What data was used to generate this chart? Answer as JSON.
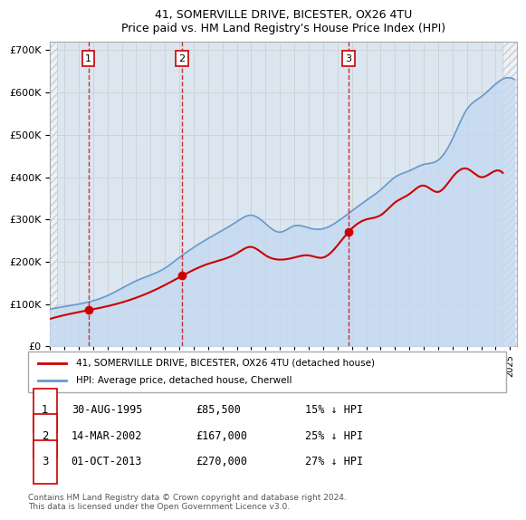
{
  "title": "41, SOMERVILLE DRIVE, BICESTER, OX26 4TU",
  "subtitle": "Price paid vs. HM Land Registry's House Price Index (HPI)",
  "ylabel": "",
  "ylim": [
    0,
    720000
  ],
  "yticks": [
    0,
    100000,
    200000,
    300000,
    400000,
    500000,
    600000,
    700000
  ],
  "ytick_labels": [
    "£0",
    "£100K",
    "£200K",
    "£300K",
    "£400K",
    "£500K",
    "£600K",
    "£700K"
  ],
  "sale_dates": [
    "1995-08-30",
    "2002-03-14",
    "2013-10-01"
  ],
  "sale_prices": [
    85500,
    167000,
    270000
  ],
  "sale_labels": [
    "1",
    "2",
    "3"
  ],
  "sale_color": "#cc0000",
  "hpi_color": "#6699cc",
  "hpi_fill_color": "#c5d9f0",
  "grid_color": "#cccccc",
  "bg_color": "#dce6f0",
  "plot_bg": "#dce6f0",
  "hatch_color": "#c0c8d8",
  "vline_color": "#cc0000",
  "vline_style": "--",
  "legend_sale": "41, SOMERVILLE DRIVE, BICESTER, OX26 4TU (detached house)",
  "legend_hpi": "HPI: Average price, detached house, Cherwell",
  "table_data": [
    [
      "1",
      "30-AUG-1995",
      "£85,500",
      "15% ↓ HPI"
    ],
    [
      "2",
      "14-MAR-2002",
      "£167,000",
      "25% ↓ HPI"
    ],
    [
      "3",
      "01-OCT-2013",
      "£270,000",
      "27% ↓ HPI"
    ]
  ],
  "footnote": "Contains HM Land Registry data © Crown copyright and database right 2024.\nThis data is licensed under the Open Government Licence v3.0.",
  "xlim_start": 1993.0,
  "xlim_end": 2025.5
}
